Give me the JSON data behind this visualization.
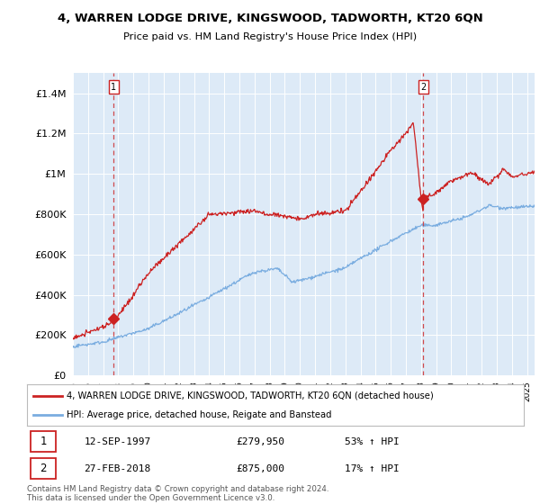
{
  "title": "4, WARREN LODGE DRIVE, KINGSWOOD, TADWORTH, KT20 6QN",
  "subtitle": "Price paid vs. HM Land Registry's House Price Index (HPI)",
  "ylim": [
    0,
    1500000
  ],
  "xlim_start": 1995.0,
  "xlim_end": 2025.5,
  "yticks": [
    0,
    200000,
    400000,
    600000,
    800000,
    1000000,
    1200000,
    1400000
  ],
  "ytick_labels": [
    "£0",
    "£200K",
    "£400K",
    "£600K",
    "£800K",
    "£1M",
    "£1.2M",
    "£1.4M"
  ],
  "bg_color": "#ddeaf7",
  "grid_color": "#ffffff",
  "red_color": "#cc2222",
  "blue_color": "#7aade0",
  "sale1_year": 1997.7,
  "sale1_price": 279950,
  "sale2_year": 2018.15,
  "sale2_price": 875000,
  "sale1_label": "1",
  "sale2_label": "2",
  "sale1_date": "12-SEP-1997",
  "sale1_amount": "£279,950",
  "sale1_hpi": "53% ↑ HPI",
  "sale2_date": "27-FEB-2018",
  "sale2_amount": "£875,000",
  "sale2_hpi": "17% ↑ HPI",
  "legend_line1": "4, WARREN LODGE DRIVE, KINGSWOOD, TADWORTH, KT20 6QN (detached house)",
  "legend_line2": "HPI: Average price, detached house, Reigate and Banstead",
  "footnote": "Contains HM Land Registry data © Crown copyright and database right 2024.\nThis data is licensed under the Open Government Licence v3.0."
}
